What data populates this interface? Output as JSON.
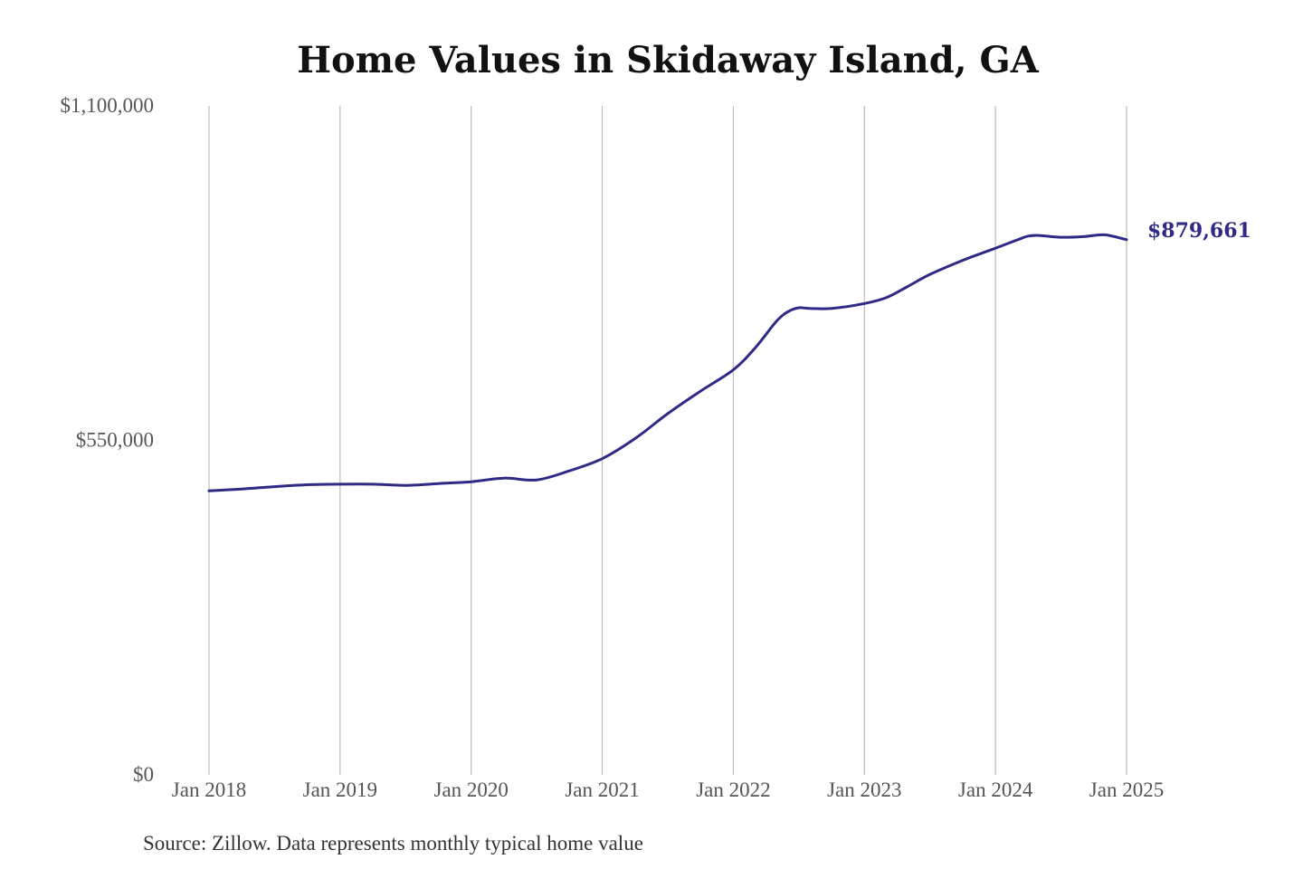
{
  "chart_data": {
    "type": "line",
    "title": "Home Values in Skidaway Island, GA",
    "xlabel": "",
    "ylabel": "",
    "source": "Source: Zillow. Data represents monthly typical home value",
    "y_ticks": [
      "$1,100,000",
      "$550,000",
      "$0"
    ],
    "y_tick_values": [
      1100000,
      550000,
      0
    ],
    "x_ticks": [
      "Jan 2018",
      "Jan 2019",
      "Jan 2020",
      "Jan 2021",
      "Jan 2022",
      "Jan 2023",
      "Jan 2024",
      "Jan 2025"
    ],
    "x_tick_values": [
      2018,
      2019,
      2020,
      2021,
      2022,
      2023,
      2024,
      2025
    ],
    "ylim": [
      0,
      1100000
    ],
    "xlim": [
      2018,
      2025
    ],
    "grid": "vertical",
    "end_label": "$879,661",
    "colors": {
      "line": "#2e2a86",
      "grid": "#bdbdbd"
    },
    "series": [
      {
        "x": [
          2018.0,
          2018.25,
          2018.5,
          2018.75,
          2019.0,
          2019.25,
          2019.5,
          2019.75,
          2020.0,
          2020.25,
          2020.5,
          2020.75,
          2021.0,
          2021.25,
          2021.5,
          2021.75,
          2022.0,
          2022.17,
          2022.33,
          2022.42,
          2022.5,
          2022.58,
          2022.75,
          2023.0,
          2023.17,
          2023.33,
          2023.5,
          2023.75,
          2024.0,
          2024.17,
          2024.25,
          2024.33,
          2024.5,
          2024.67,
          2024.83,
          2025.0
        ],
        "values": [
          467000,
          470000,
          474000,
          477000,
          478000,
          478000,
          476000,
          479000,
          482000,
          488000,
          485000,
          500000,
          520000,
          553000,
          594000,
          631000,
          666000,
          703000,
          746000,
          762000,
          768000,
          767000,
          767000,
          775000,
          785000,
          803000,
          823000,
          846000,
          866000,
          880000,
          886000,
          887000,
          884000,
          885000,
          888000,
          880000
        ]
      }
    ]
  }
}
